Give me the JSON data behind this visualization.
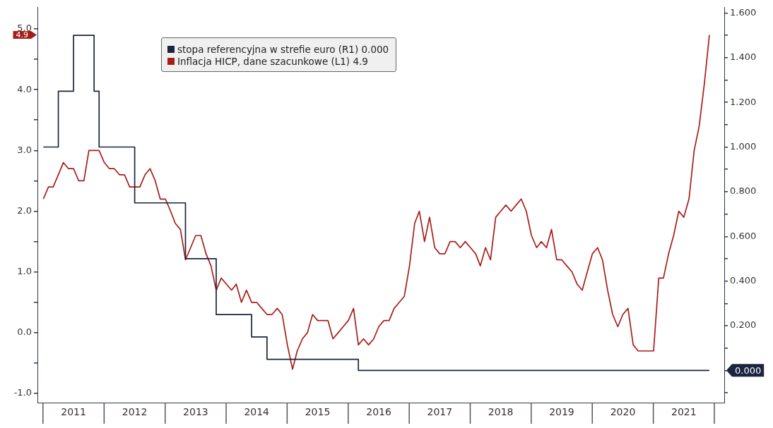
{
  "chart_data": {
    "type": "line",
    "x": [
      "2011-01",
      "2011-02",
      "2011-03",
      "2011-04",
      "2011-05",
      "2011-06",
      "2011-07",
      "2011-08",
      "2011-09",
      "2011-10",
      "2011-11",
      "2011-12",
      "2012-01",
      "2012-02",
      "2012-03",
      "2012-04",
      "2012-05",
      "2012-06",
      "2012-07",
      "2012-08",
      "2012-09",
      "2012-10",
      "2012-11",
      "2012-12",
      "2013-01",
      "2013-02",
      "2013-03",
      "2013-04",
      "2013-05",
      "2013-06",
      "2013-07",
      "2013-08",
      "2013-09",
      "2013-10",
      "2013-11",
      "2013-12",
      "2014-01",
      "2014-02",
      "2014-03",
      "2014-04",
      "2014-05",
      "2014-06",
      "2014-07",
      "2014-08",
      "2014-09",
      "2014-10",
      "2014-11",
      "2014-12",
      "2015-01",
      "2015-02",
      "2015-03",
      "2015-04",
      "2015-05",
      "2015-06",
      "2015-07",
      "2015-08",
      "2015-09",
      "2015-10",
      "2015-11",
      "2015-12",
      "2016-01",
      "2016-02",
      "2016-03",
      "2016-04",
      "2016-05",
      "2016-06",
      "2016-07",
      "2016-08",
      "2016-09",
      "2016-10",
      "2016-11",
      "2016-12",
      "2017-01",
      "2017-02",
      "2017-03",
      "2017-04",
      "2017-05",
      "2017-06",
      "2017-07",
      "2017-08",
      "2017-09",
      "2017-10",
      "2017-11",
      "2017-12",
      "2018-01",
      "2018-02",
      "2018-03",
      "2018-04",
      "2018-05",
      "2018-06",
      "2018-07",
      "2018-08",
      "2018-09",
      "2018-10",
      "2018-11",
      "2018-12",
      "2019-01",
      "2019-02",
      "2019-03",
      "2019-04",
      "2019-05",
      "2019-06",
      "2019-07",
      "2019-08",
      "2019-09",
      "2019-10",
      "2019-11",
      "2019-12",
      "2020-01",
      "2020-02",
      "2020-03",
      "2020-04",
      "2020-05",
      "2020-06",
      "2020-07",
      "2020-08",
      "2020-09",
      "2020-10",
      "2020-11",
      "2020-12",
      "2021-01",
      "2021-02",
      "2021-03",
      "2021-04",
      "2021-05",
      "2021-06",
      "2021-07",
      "2021-08",
      "2021-09",
      "2021-10",
      "2021-11",
      "2021-12"
    ],
    "series": [
      {
        "name": "stopa referencyjna w strefie euro (R1) 0.000",
        "type": "step",
        "axis": "y2",
        "color": "#1b2440",
        "x": [
          "2011-01",
          "2011-04",
          "2011-07",
          "2011-11",
          "2011-12",
          "2012-07",
          "2013-05",
          "2013-11",
          "2014-06",
          "2014-09",
          "2016-03",
          "2021-12"
        ],
        "values": [
          1.0,
          1.25,
          1.5,
          1.25,
          1.0,
          0.75,
          0.5,
          0.25,
          0.15,
          0.05,
          0,
          0
        ]
      },
      {
        "name": "Inflacja HICP, dane szacunkowe (L1) 4.9",
        "color": "#a61e1a",
        "values": [
          2.2,
          2.4,
          2.4,
          2.6,
          2.8,
          2.7,
          2.7,
          2.5,
          2.5,
          3.0,
          3.0,
          3.0,
          2.8,
          2.7,
          2.7,
          2.6,
          2.6,
          2.4,
          2.4,
          2.4,
          2.6,
          2.7,
          2.5,
          2.2,
          2.2,
          2.0,
          1.8,
          1.7,
          1.2,
          1.4,
          1.6,
          1.6,
          1.3,
          1.1,
          0.7,
          0.9,
          0.8,
          0.7,
          0.8,
          0.5,
          0.7,
          0.5,
          0.5,
          0.4,
          0.3,
          0.3,
          0.4,
          0.3,
          -0.2,
          -0.6,
          -0.3,
          -0.1,
          0.0,
          0.3,
          0.2,
          0.2,
          0.2,
          -0.1,
          0.0,
          0.1,
          0.2,
          0.4,
          -0.2,
          -0.1,
          -0.2,
          -0.1,
          0.1,
          0.2,
          0.2,
          0.4,
          0.5,
          0.6,
          1.1,
          1.8,
          2.0,
          1.5,
          1.9,
          1.4,
          1.3,
          1.3,
          1.5,
          1.5,
          1.4,
          1.5,
          1.4,
          1.3,
          1.1,
          1.4,
          1.2,
          1.9,
          2.0,
          2.1,
          2.0,
          2.1,
          2.2,
          2.0,
          1.6,
          1.4,
          1.5,
          1.4,
          1.7,
          1.2,
          1.2,
          1.1,
          1.0,
          0.8,
          0.7,
          1.0,
          1.3,
          1.4,
          1.2,
          0.7,
          0.3,
          0.1,
          0.3,
          0.4,
          -0.2,
          -0.3,
          -0.3,
          -0.3,
          -0.3,
          0.9,
          0.9,
          1.3,
          1.6,
          2.0,
          1.9,
          2.2,
          3.0,
          3.4,
          4.1,
          4.9
        ]
      }
    ],
    "annotations": [
      "0.000",
      "4.9"
    ],
    "xlim": [
      "2010-11-27",
      "2022-02-28"
    ],
    "xticks": [
      {
        "value": "2011-07",
        "label": "2011"
      },
      {
        "value": "2012-07",
        "label": "2012"
      },
      {
        "value": "2013-07",
        "label": "2013"
      },
      {
        "value": "2014-07",
        "label": "2014"
      },
      {
        "value": "2015-07",
        "label": "2015"
      },
      {
        "value": "2016-07",
        "label": "2016"
      },
      {
        "value": "2017-07",
        "label": "2017"
      },
      {
        "value": "2018-07",
        "label": "2018"
      },
      {
        "value": "2019-07",
        "label": "2019"
      },
      {
        "value": "2020-07",
        "label": "2020"
      },
      {
        "value": "2021-07",
        "label": "2021"
      }
    ],
    "ylim": [
      -1.15,
      5.35
    ],
    "yticks": [
      {
        "value": -1.0,
        "label": "-1.0"
      },
      {
        "value": -0.5,
        "label": null
      },
      {
        "value": 0,
        "label": "0.0"
      },
      {
        "value": 0.5,
        "label": null
      },
      {
        "value": 1.0,
        "label": "1.0"
      },
      {
        "value": 1.5,
        "label": null
      },
      {
        "value": 2.0,
        "label": "2.0"
      },
      {
        "value": 2.5,
        "label": null
      },
      {
        "value": 3.0,
        "label": "3.0"
      },
      {
        "value": 3.5,
        "label": null
      },
      {
        "value": 4.0,
        "label": "4.0"
      },
      {
        "value": 4.5,
        "label": null
      },
      {
        "value": 5.0,
        "label": "5.0"
      }
    ],
    "y2lim": [
      -0.144,
      1.624
    ],
    "y2ticks": [
      {
        "value": -0.1,
        "label": null
      },
      {
        "value": 0,
        "label": null
      },
      {
        "value": 0.1,
        "label": null
      },
      {
        "value": 0.2,
        "label": "0.200"
      },
      {
        "value": 0.3,
        "label": null
      },
      {
        "value": 0.4,
        "label": "0.400"
      },
      {
        "value": 0.5,
        "label": null
      },
      {
        "value": 0.6,
        "label": "0.600"
      },
      {
        "value": 0.7,
        "label": null
      },
      {
        "value": 0.8,
        "label": "0.800"
      },
      {
        "value": 0.9,
        "label": null
      },
      {
        "value": 1.0,
        "label": "1.000"
      },
      {
        "value": 1.1,
        "label": null
      },
      {
        "value": 1.2,
        "label": "1.200"
      },
      {
        "value": 1.3,
        "label": null
      },
      {
        "value": 1.4,
        "label": "1.400"
      },
      {
        "value": 1.5,
        "label": null
      },
      {
        "value": 1.6,
        "label": "1.600"
      }
    ],
    "legend": "top left"
  }
}
